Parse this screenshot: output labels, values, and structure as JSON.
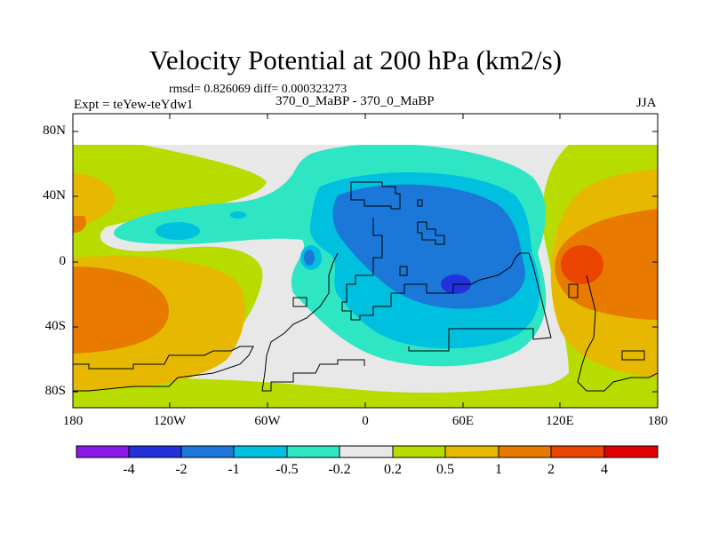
{
  "title": "Velocity Potential at 200 hPa (km2/s)",
  "stats": "rmsd= 0.826069 diff= 0.000323273",
  "experiment": "Expt = teYew-teYdw1",
  "runs": "370_0_MaBP - 370_0_MaBP",
  "season": "JJA",
  "lat_labels": [
    "80N",
    "40N",
    "0",
    "40S",
    "80S"
  ],
  "lon_labels": [
    "180",
    "120W",
    "60W",
    "0",
    "60E",
    "120E",
    "180"
  ],
  "colorbar": {
    "labels": [
      "-4",
      "-2",
      "-1",
      "-0.5",
      "-0.2",
      "0.2",
      "0.5",
      "1",
      "2",
      "4"
    ],
    "colors": [
      "#8b1ae8",
      "#2331dc",
      "#1b78d9",
      "#00c0e0",
      "#2ee6c4",
      "#e8e8e8",
      "#b8dc00",
      "#e7b800",
      "#e87a00",
      "#ea4400",
      "#e00000"
    ]
  }
}
